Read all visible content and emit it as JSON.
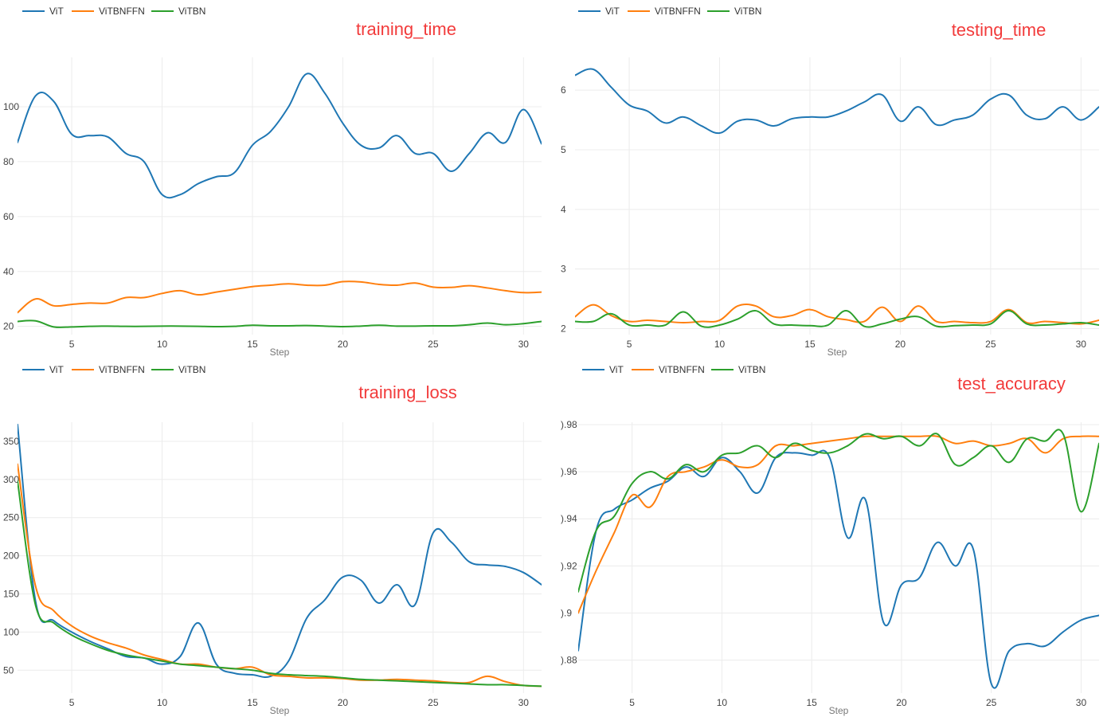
{
  "colors": {
    "vit": "#1f77b4",
    "vitbnffn": "#ff7f0e",
    "vitbn": "#2ca02c",
    "title": "#f23b3b"
  },
  "chart_data": [
    {
      "type": "line",
      "title": "training_time",
      "xlabel": "Step",
      "ylabel": "",
      "xlim": [
        2,
        31
      ],
      "ylim": [
        17,
        118
      ],
      "xticks": [
        5,
        10,
        15,
        20,
        25,
        30
      ],
      "yticks": [
        20,
        40,
        60,
        80,
        100
      ],
      "ytick_labels": [
        "20",
        "40",
        "60",
        "80",
        "100"
      ],
      "legend": [
        "ViT",
        "ViTBNFFN",
        "ViTBN"
      ],
      "series": [
        {
          "name": "ViT",
          "x": [
            2,
            3,
            4,
            5,
            6,
            7,
            8,
            9,
            10,
            11,
            12,
            13,
            14,
            15,
            16,
            17,
            18,
            19,
            20,
            21,
            22,
            23,
            24,
            25,
            26,
            27,
            28,
            29,
            30,
            31
          ],
          "values": [
            87,
            104,
            102,
            90,
            89.5,
            89,
            83,
            80,
            68,
            68,
            72,
            74.5,
            76,
            86,
            91,
            100,
            112,
            105,
            94,
            86,
            85,
            89.5,
            83,
            83,
            76.5,
            83,
            90.5,
            87,
            99,
            86.5
          ]
        },
        {
          "name": "ViTBNFFN",
          "x": [
            2,
            3,
            4,
            5,
            6,
            7,
            8,
            9,
            10,
            11,
            12,
            13,
            14,
            15,
            16,
            17,
            18,
            19,
            20,
            21,
            22,
            23,
            24,
            25,
            26,
            27,
            28,
            29,
            30,
            31
          ],
          "values": [
            25,
            30,
            27.5,
            28,
            28.5,
            28.5,
            30.5,
            30.5,
            32,
            33,
            31.5,
            32.5,
            33.5,
            34.5,
            35,
            35.5,
            35,
            35,
            36.3,
            36.2,
            35.3,
            35,
            35.8,
            34.3,
            34.2,
            34.8,
            34,
            33,
            32.3,
            32.5
          ]
        },
        {
          "name": "ViTBN",
          "x": [
            2,
            3,
            4,
            5,
            6,
            7,
            8,
            9,
            10,
            11,
            12,
            13,
            14,
            15,
            16,
            17,
            18,
            19,
            20,
            21,
            22,
            23,
            24,
            25,
            26,
            27,
            28,
            29,
            30,
            31
          ],
          "values": [
            21.8,
            22,
            19.8,
            19.8,
            20,
            20.1,
            20,
            20,
            20.1,
            20.1,
            20,
            19.9,
            20,
            20.4,
            20.2,
            20.2,
            20.3,
            20.1,
            19.9,
            20.1,
            20.4,
            20.1,
            20.1,
            20.2,
            20.2,
            20.6,
            21.2,
            20.6,
            21,
            21.8
          ]
        }
      ]
    },
    {
      "type": "line",
      "title": "testing_time",
      "xlabel": "Step",
      "ylabel": "",
      "xlim": [
        2,
        31
      ],
      "ylim": [
        1.9,
        6.55
      ],
      "xticks": [
        5,
        10,
        15,
        20,
        25,
        30
      ],
      "yticks": [
        2,
        3,
        4,
        5,
        6
      ],
      "ytick_labels": [
        "2",
        "3",
        "4",
        "5",
        "6"
      ],
      "legend": [
        "ViT",
        "ViTBNFFN",
        "ViTBN"
      ],
      "series": [
        {
          "name": "ViT",
          "x": [
            2,
            3,
            4,
            5,
            6,
            7,
            8,
            9,
            10,
            11,
            12,
            13,
            14,
            15,
            16,
            17,
            18,
            19,
            20,
            21,
            22,
            23,
            24,
            25,
            26,
            27,
            28,
            29,
            30,
            31
          ],
          "values": [
            6.25,
            6.35,
            6.05,
            5.75,
            5.65,
            5.45,
            5.55,
            5.4,
            5.28,
            5.48,
            5.5,
            5.4,
            5.52,
            5.55,
            5.55,
            5.65,
            5.8,
            5.92,
            5.48,
            5.72,
            5.42,
            5.5,
            5.58,
            5.85,
            5.92,
            5.58,
            5.52,
            5.72,
            5.5,
            5.72
          ]
        },
        {
          "name": "ViTBNFFN",
          "x": [
            2,
            3,
            4,
            5,
            6,
            7,
            8,
            9,
            10,
            11,
            12,
            13,
            14,
            15,
            16,
            17,
            18,
            19,
            20,
            21,
            22,
            23,
            24,
            25,
            26,
            27,
            28,
            29,
            30,
            31
          ],
          "values": [
            2.2,
            2.4,
            2.22,
            2.12,
            2.14,
            2.12,
            2.1,
            2.12,
            2.14,
            2.38,
            2.38,
            2.2,
            2.22,
            2.32,
            2.2,
            2.15,
            2.12,
            2.36,
            2.12,
            2.38,
            2.12,
            2.12,
            2.1,
            2.12,
            2.32,
            2.1,
            2.12,
            2.1,
            2.08,
            2.14
          ]
        },
        {
          "name": "ViTBN",
          "x": [
            2,
            3,
            4,
            5,
            6,
            7,
            8,
            9,
            10,
            11,
            12,
            13,
            14,
            15,
            16,
            17,
            18,
            19,
            20,
            21,
            22,
            23,
            24,
            25,
            26,
            27,
            28,
            29,
            30,
            31
          ],
          "values": [
            2.12,
            2.12,
            2.25,
            2.06,
            2.06,
            2.06,
            2.28,
            2.04,
            2.06,
            2.16,
            2.3,
            2.08,
            2.06,
            2.05,
            2.06,
            2.3,
            2.04,
            2.08,
            2.16,
            2.2,
            2.04,
            2.05,
            2.06,
            2.08,
            2.3,
            2.08,
            2.06,
            2.08,
            2.1,
            2.06
          ]
        }
      ]
    },
    {
      "type": "line",
      "title": "training_loss",
      "xlabel": "Step",
      "ylabel": "",
      "xlim": [
        2,
        31
      ],
      "ylim": [
        20,
        375
      ],
      "xticks": [
        5,
        10,
        15,
        20,
        25,
        30
      ],
      "yticks": [
        50,
        100,
        150,
        200,
        250,
        300,
        350
      ],
      "ytick_labels": [
        "50",
        "100",
        "150",
        "200",
        "250",
        "300",
        "350"
      ],
      "legend": [
        "ViT",
        "ViTBNFFN",
        "ViTBN"
      ],
      "series": [
        {
          "name": "ViT",
          "x": [
            2,
            3,
            4,
            5,
            6,
            7,
            8,
            9,
            10,
            11,
            12,
            13,
            14,
            15,
            16,
            17,
            18,
            19,
            20,
            21,
            22,
            23,
            24,
            25,
            26,
            27,
            28,
            29,
            30,
            31
          ],
          "values": [
            372,
            140,
            115,
            100,
            88,
            78,
            68,
            66,
            58,
            68,
            112,
            58,
            46,
            44,
            42,
            62,
            118,
            142,
            172,
            168,
            138,
            162,
            136,
            230,
            218,
            192,
            188,
            186,
            178,
            162
          ]
        },
        {
          "name": "ViTBNFFN",
          "x": [
            2,
            3,
            4,
            5,
            6,
            7,
            8,
            9,
            10,
            11,
            12,
            13,
            14,
            15,
            16,
            17,
            18,
            19,
            20,
            21,
            22,
            23,
            24,
            25,
            26,
            27,
            28,
            29,
            30,
            31
          ],
          "values": [
            320,
            160,
            128,
            108,
            95,
            86,
            79,
            70,
            64,
            58,
            58,
            54,
            52,
            54,
            44,
            42,
            40,
            40,
            39,
            37,
            37,
            38,
            37,
            36,
            34,
            34,
            42,
            35,
            30,
            29
          ]
        },
        {
          "name": "ViTBN",
          "x": [
            2,
            3,
            4,
            5,
            6,
            7,
            8,
            9,
            10,
            11,
            12,
            13,
            14,
            15,
            16,
            17,
            18,
            19,
            20,
            21,
            22,
            23,
            24,
            25,
            26,
            27,
            28,
            29,
            30,
            31
          ],
          "values": [
            298,
            135,
            112,
            96,
            85,
            76,
            70,
            66,
            62,
            58,
            56,
            54,
            52,
            50,
            46,
            44,
            43,
            42,
            40,
            38,
            37,
            36,
            35,
            34,
            33,
            32,
            31,
            31,
            30,
            29
          ]
        }
      ]
    },
    {
      "type": "line",
      "title": "test_accuracy",
      "xlabel": "Step",
      "ylabel": "",
      "xlim": [
        2,
        31
      ],
      "ylim": [
        0.866,
        0.981
      ],
      "xticks": [
        5,
        10,
        15,
        20,
        25,
        30
      ],
      "yticks": [
        0.88,
        0.9,
        0.92,
        0.94,
        0.96,
        0.98
      ],
      "ytick_labels": [
        ").88",
        ").9",
        ").92",
        ").94",
        ").96",
        ").98"
      ],
      "legend": [
        "ViT",
        "ViTBNFFN",
        "ViTBN"
      ],
      "series": [
        {
          "name": "ViT",
          "x": [
            2,
            3,
            4,
            5,
            6,
            7,
            8,
            9,
            10,
            11,
            12,
            13,
            14,
            15,
            16,
            17,
            18,
            19,
            20,
            21,
            22,
            23,
            24,
            25,
            26,
            27,
            28,
            29,
            30,
            31
          ],
          "values": [
            0.884,
            0.935,
            0.944,
            0.948,
            0.953,
            0.956,
            0.962,
            0.958,
            0.966,
            0.96,
            0.951,
            0.966,
            0.968,
            0.967,
            0.966,
            0.932,
            0.948,
            0.896,
            0.912,
            0.915,
            0.93,
            0.92,
            0.927,
            0.87,
            0.884,
            0.887,
            0.886,
            0.892,
            0.897,
            0.899
          ]
        },
        {
          "name": "ViTBNFFN",
          "x": [
            2,
            3,
            4,
            5,
            6,
            7,
            8,
            9,
            10,
            11,
            12,
            13,
            14,
            15,
            16,
            17,
            18,
            19,
            20,
            21,
            22,
            23,
            24,
            25,
            26,
            27,
            28,
            29,
            30,
            31
          ],
          "values": [
            0.9,
            0.918,
            0.934,
            0.95,
            0.945,
            0.958,
            0.96,
            0.962,
            0.965,
            0.962,
            0.963,
            0.971,
            0.971,
            0.972,
            0.973,
            0.974,
            0.975,
            0.975,
            0.975,
            0.975,
            0.975,
            0.972,
            0.973,
            0.971,
            0.972,
            0.974,
            0.968,
            0.974,
            0.975,
            0.975
          ]
        },
        {
          "name": "ViTBN",
          "x": [
            2,
            3,
            4,
            5,
            6,
            7,
            8,
            9,
            10,
            11,
            12,
            13,
            14,
            15,
            16,
            17,
            18,
            19,
            20,
            21,
            22,
            23,
            24,
            25,
            26,
            27,
            28,
            29,
            30,
            31
          ],
          "values": [
            0.909,
            0.935,
            0.941,
            0.955,
            0.96,
            0.957,
            0.963,
            0.96,
            0.967,
            0.968,
            0.971,
            0.966,
            0.972,
            0.969,
            0.968,
            0.971,
            0.976,
            0.974,
            0.975,
            0.971,
            0.976,
            0.963,
            0.966,
            0.971,
            0.964,
            0.974,
            0.973,
            0.976,
            0.943,
            0.972
          ]
        }
      ]
    }
  ]
}
